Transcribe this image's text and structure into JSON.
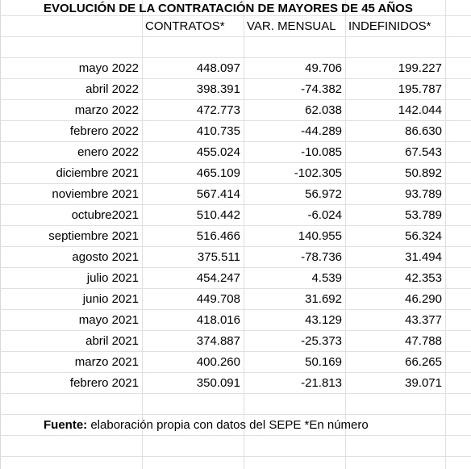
{
  "title": "EVOLUCIÓN DE LA CONTRATACIÓN DE MAYORES DE 45 AÑOS",
  "headers": [
    "CONTRATOS*",
    "VAR. MENSUAL",
    "INDEFINIDOS*"
  ],
  "rows": [
    {
      "month": "mayo 2022",
      "contratos": "448.097",
      "var": "49.706",
      "indef": "199.227"
    },
    {
      "month": "abril 2022",
      "contratos": "398.391",
      "var": "-74.382",
      "indef": "195.787"
    },
    {
      "month": "marzo 2022",
      "contratos": "472.773",
      "var": "62.038",
      "indef": "142.044"
    },
    {
      "month": "febrero 2022",
      "contratos": "410.735",
      "var": "-44.289",
      "indef": "86.630"
    },
    {
      "month": "enero 2022",
      "contratos": "455.024",
      "var": "-10.085",
      "indef": "67.543"
    },
    {
      "month": "diciembre 2021",
      "contratos": "465.109",
      "var": "-102.305",
      "indef": "50.892"
    },
    {
      "month": "noviembre 2021",
      "contratos": "567.414",
      "var": "56.972",
      "indef": "93.789"
    },
    {
      "month": "octubre2021",
      "contratos": "510.442",
      "var": "-6.024",
      "indef": "53.789"
    },
    {
      "month": "septiembre 2021",
      "contratos": "516.466",
      "var": "140.955",
      "indef": "56.324"
    },
    {
      "month": "agosto 2021",
      "contratos": "375.511",
      "var": "-78.736",
      "indef": "31.494"
    },
    {
      "month": "julio 2021",
      "contratos": "454.247",
      "var": "4.539",
      "indef": "42.353"
    },
    {
      "month": "junio 2021",
      "contratos": "449.708",
      "var": "31.692",
      "indef": "46.290"
    },
    {
      "month": "mayo 2021",
      "contratos": "418.016",
      "var": "43.129",
      "indef": "43.377"
    },
    {
      "month": "abril 2021",
      "contratos": "374.887",
      "var": "-25.373",
      "indef": "47.788"
    },
    {
      "month": "marzo 2021",
      "contratos": "400.260",
      "var": "50.169",
      "indef": "66.265"
    },
    {
      "month": "febrero 2021",
      "contratos": "350.091",
      "var": "-21.813",
      "indef": "39.071"
    }
  ],
  "footer": {
    "label": "Fuente:",
    "text": " elaboración propia con datos del SEPE *En número"
  }
}
